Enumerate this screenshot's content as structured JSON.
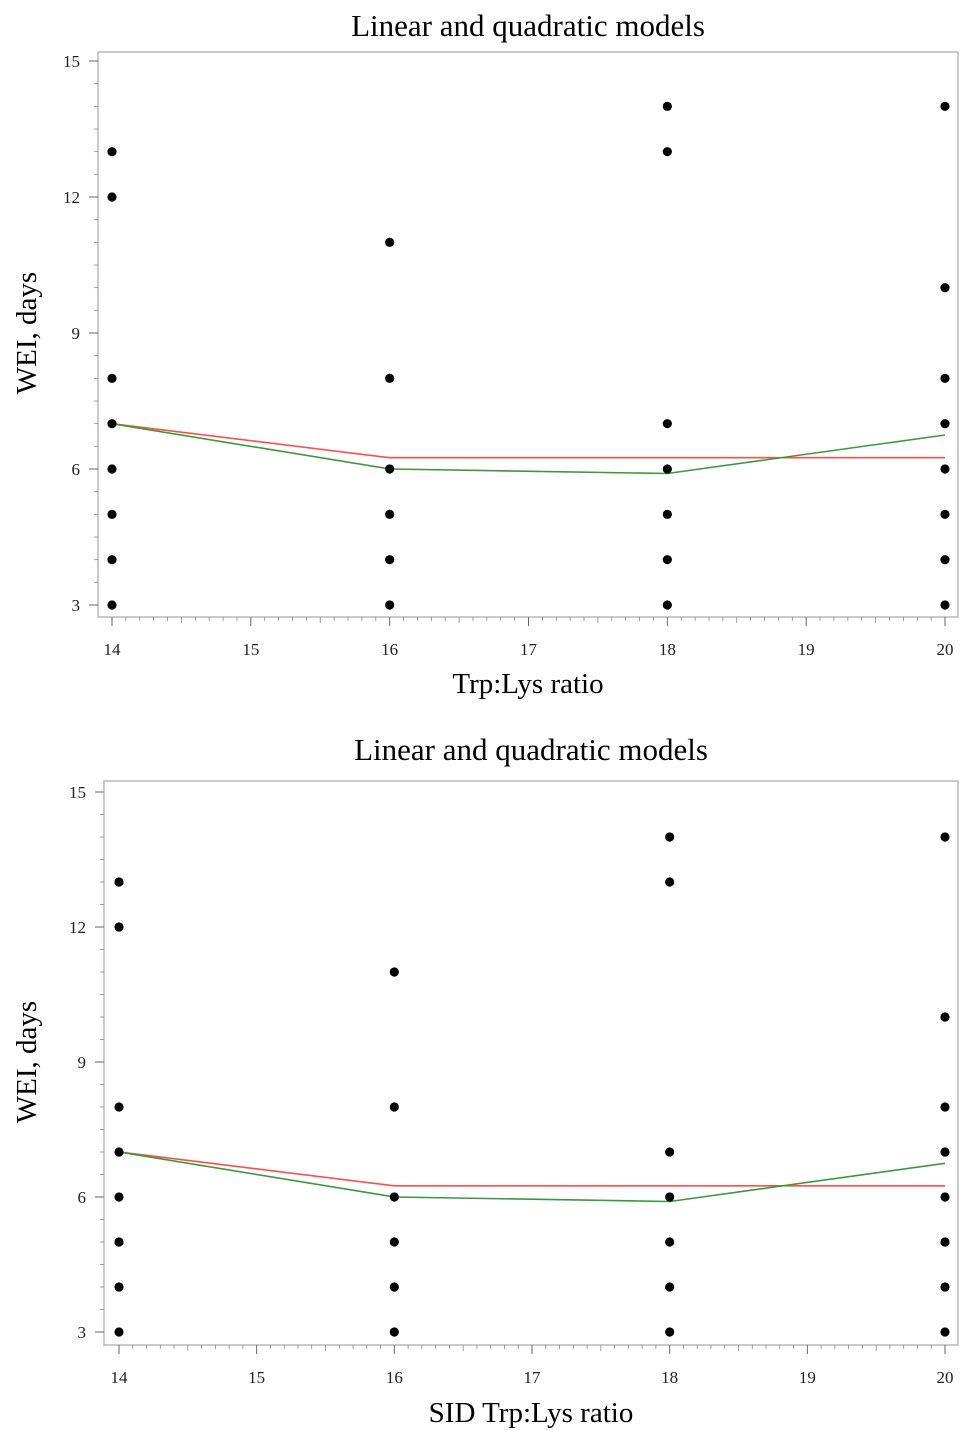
{
  "chart_data": [
    {
      "type": "scatter",
      "title": "Linear and quadratic models",
      "xlabel": "Trp:Lys ratio",
      "ylabel": "WEI, days",
      "xlim": [
        14,
        20
      ],
      "ylim": [
        3,
        15
      ],
      "x_ticks": [
        14,
        15,
        16,
        17,
        18,
        19,
        20
      ],
      "y_ticks": [
        3,
        6,
        9,
        12,
        15
      ],
      "grid": false,
      "points": [
        {
          "x": 14,
          "y": 13
        },
        {
          "x": 14,
          "y": 12
        },
        {
          "x": 14,
          "y": 8
        },
        {
          "x": 14,
          "y": 7
        },
        {
          "x": 14,
          "y": 6
        },
        {
          "x": 14,
          "y": 5
        },
        {
          "x": 14,
          "y": 4
        },
        {
          "x": 14,
          "y": 3
        },
        {
          "x": 16,
          "y": 11
        },
        {
          "x": 16,
          "y": 8
        },
        {
          "x": 16,
          "y": 6
        },
        {
          "x": 16,
          "y": 5
        },
        {
          "x": 16,
          "y": 4
        },
        {
          "x": 16,
          "y": 3
        },
        {
          "x": 18,
          "y": 14
        },
        {
          "x": 18,
          "y": 13
        },
        {
          "x": 18,
          "y": 7
        },
        {
          "x": 18,
          "y": 6
        },
        {
          "x": 18,
          "y": 5
        },
        {
          "x": 18,
          "y": 4
        },
        {
          "x": 18,
          "y": 3
        },
        {
          "x": 20,
          "y": 14
        },
        {
          "x": 20,
          "y": 10
        },
        {
          "x": 20,
          "y": 8
        },
        {
          "x": 20,
          "y": 7
        },
        {
          "x": 20,
          "y": 6
        },
        {
          "x": 20,
          "y": 5
        },
        {
          "x": 20,
          "y": 4
        },
        {
          "x": 20,
          "y": 3
        }
      ],
      "series": [
        {
          "color": "#ff4d4d",
          "x": [
            14,
            16,
            20
          ],
          "y": [
            7.0,
            6.25,
            6.25
          ]
        },
        {
          "color": "#3a9a3a",
          "x": [
            14,
            16,
            18,
            20
          ],
          "y": [
            7.0,
            6.0,
            5.9,
            6.75
          ]
        }
      ]
    },
    {
      "type": "scatter",
      "title": "Linear and quadratic models",
      "xlabel": "SID Trp:Lys ratio",
      "ylabel": "WEI, days",
      "xlim": [
        14,
        20
      ],
      "ylim": [
        3,
        15
      ],
      "x_ticks": [
        14,
        15,
        16,
        17,
        18,
        19,
        20
      ],
      "y_ticks": [
        3,
        6,
        9,
        12,
        15
      ],
      "grid": false,
      "points": [
        {
          "x": 14,
          "y": 13
        },
        {
          "x": 14,
          "y": 12
        },
        {
          "x": 14,
          "y": 8
        },
        {
          "x": 14,
          "y": 7
        },
        {
          "x": 14,
          "y": 6
        },
        {
          "x": 14,
          "y": 5
        },
        {
          "x": 14,
          "y": 4
        },
        {
          "x": 14,
          "y": 3
        },
        {
          "x": 16,
          "y": 11
        },
        {
          "x": 16,
          "y": 8
        },
        {
          "x": 16,
          "y": 6
        },
        {
          "x": 16,
          "y": 5
        },
        {
          "x": 16,
          "y": 4
        },
        {
          "x": 16,
          "y": 3
        },
        {
          "x": 18,
          "y": 14
        },
        {
          "x": 18,
          "y": 13
        },
        {
          "x": 18,
          "y": 7
        },
        {
          "x": 18,
          "y": 6
        },
        {
          "x": 18,
          "y": 5
        },
        {
          "x": 18,
          "y": 4
        },
        {
          "x": 18,
          "y": 3
        },
        {
          "x": 20,
          "y": 14
        },
        {
          "x": 20,
          "y": 10
        },
        {
          "x": 20,
          "y": 8
        },
        {
          "x": 20,
          "y": 7
        },
        {
          "x": 20,
          "y": 6
        },
        {
          "x": 20,
          "y": 5
        },
        {
          "x": 20,
          "y": 4
        },
        {
          "x": 20,
          "y": 3
        }
      ],
      "series": [
        {
          "color": "#ff4d4d",
          "x": [
            14,
            16,
            20
          ],
          "y": [
            7.0,
            6.25,
            6.25
          ]
        },
        {
          "color": "#3a9a3a",
          "x": [
            14,
            16,
            18,
            20
          ],
          "y": [
            7.0,
            6.0,
            5.9,
            6.75
          ]
        }
      ]
    }
  ]
}
